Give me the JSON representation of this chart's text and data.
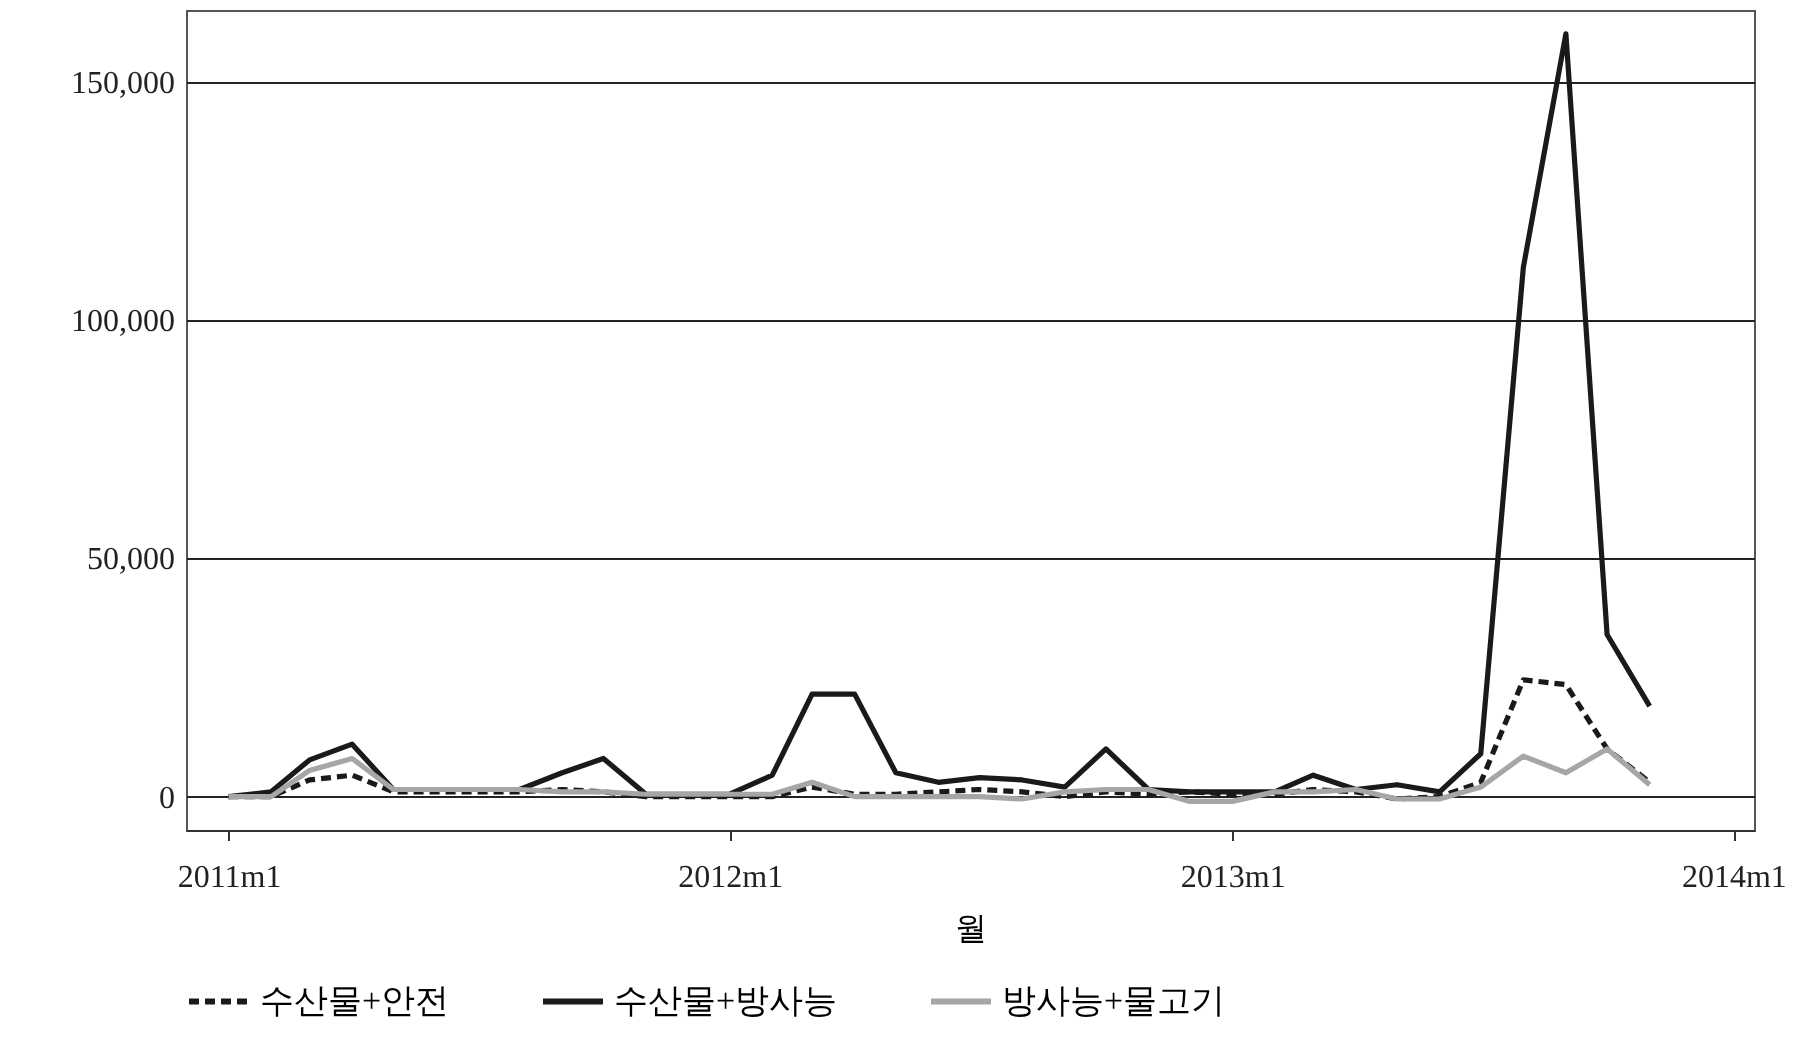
{
  "chart_data": {
    "type": "line",
    "xlabel": "월",
    "x": [
      "2011-01",
      "2011-02",
      "2011-03",
      "2011-04",
      "2011-05",
      "2011-06",
      "2011-07",
      "2011-08",
      "2011-09",
      "2011-10",
      "2011-11",
      "2011-12",
      "2012-01",
      "2012-02",
      "2012-03",
      "2012-04",
      "2012-05",
      "2012-06",
      "2012-07",
      "2012-08",
      "2012-09",
      "2012-10",
      "2012-11",
      "2012-12",
      "2013-01",
      "2013-02",
      "2013-03",
      "2013-04",
      "2013-05",
      "2013-06",
      "2013-07",
      "2013-08",
      "2013-09",
      "2013-10",
      "2013-11"
    ],
    "xlim": [
      "2010-12-01",
      "2014-01-16"
    ],
    "xticks": [
      {
        "value": "2011-01",
        "label": "2011m1"
      },
      {
        "value": "2012-01",
        "label": "2012m1"
      },
      {
        "value": "2013-01",
        "label": "2013m1"
      },
      {
        "value": "2014-01",
        "label": "2014m1"
      }
    ],
    "ylim": [
      -7000,
      165000
    ],
    "yticks": [
      {
        "value": 0,
        "label": "0"
      },
      {
        "value": 50000,
        "label": "50,000"
      },
      {
        "value": 100000,
        "label": "100,000"
      },
      {
        "value": 150000,
        "label": "150,000"
      }
    ],
    "grid": "y",
    "legend": "bottom",
    "series": [
      {
        "name": "수산물+안전",
        "color": "#1a1a1a",
        "line_style": "dashed",
        "values": [
          0,
          0,
          3500,
          4500,
          1000,
          1000,
          1000,
          1000,
          1500,
          1000,
          0,
          0,
          0,
          0,
          2000,
          500,
          500,
          1000,
          1500,
          1000,
          0,
          1000,
          500,
          1000,
          500,
          500,
          1500,
          1000,
          -500,
          0,
          3000,
          24500,
          23500,
          10000,
          3000
        ]
      },
      {
        "name": "수산물+방사능",
        "color": "#1a1a1a",
        "line_style": "solid",
        "values": [
          0,
          1000,
          7700,
          11000,
          1500,
          1500,
          1500,
          1500,
          5000,
          8000,
          500,
          500,
          500,
          4500,
          21500,
          21500,
          5000,
          3000,
          4000,
          3500,
          2000,
          10000,
          1500,
          1000,
          1000,
          1000,
          4500,
          1500,
          2500,
          1000,
          9000,
          111000,
          160000,
          34000,
          19000
        ]
      },
      {
        "name": "방사능+물고기",
        "color": "#a6a6a6",
        "line_style": "solid",
        "values": [
          0,
          0,
          5500,
          8000,
          1500,
          1500,
          1500,
          1500,
          1000,
          1000,
          500,
          500,
          500,
          500,
          3000,
          0,
          0,
          0,
          0,
          -500,
          1000,
          1500,
          1500,
          -1000,
          -1000,
          1000,
          1000,
          1500,
          -500,
          -500,
          2000,
          8500,
          5000,
          10000,
          2500
        ]
      }
    ]
  }
}
